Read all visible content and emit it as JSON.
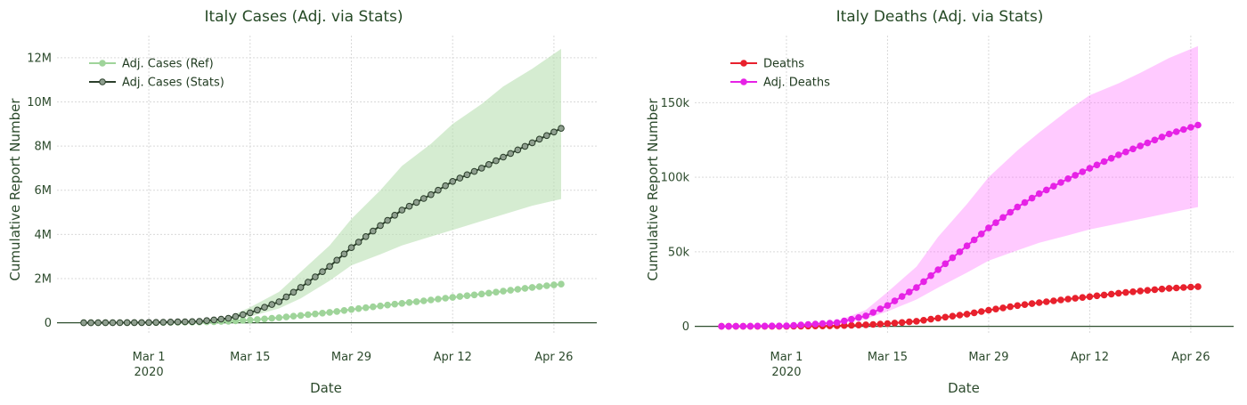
{
  "chart_data": [
    {
      "type": "line",
      "title": "Italy Cases (Adj. via Stats)",
      "xlabel": "Date",
      "ylabel": "Cumulative Report Number",
      "x_start": "2020-02-21",
      "x_end": "2020-04-27",
      "x_ticks": [
        {
          "date": "2020-03-01",
          "label": "Mar 1",
          "sub": "2020"
        },
        {
          "date": "2020-03-15",
          "label": "Mar 15",
          "sub": ""
        },
        {
          "date": "2020-03-29",
          "label": "Mar 29",
          "sub": ""
        },
        {
          "date": "2020-04-12",
          "label": "Apr 12",
          "sub": ""
        },
        {
          "date": "2020-04-26",
          "label": "Apr 26",
          "sub": ""
        }
      ],
      "y_ticks": [
        {
          "value": 0,
          "label": "0"
        },
        {
          "value": 2000000,
          "label": "2M"
        },
        {
          "value": 4000000,
          "label": "4M"
        },
        {
          "value": 6000000,
          "label": "6M"
        },
        {
          "value": 8000000,
          "label": "8M"
        },
        {
          "value": 10000000,
          "label": "10M"
        },
        {
          "value": 12000000,
          "label": "12M"
        }
      ],
      "ylim": [
        -500000,
        13000000
      ],
      "grid": true,
      "legend_position": "top-left",
      "band": {
        "color": "#b9dfb2",
        "opacity": 0.6,
        "dates": [
          "2020-02-21",
          "2020-03-01",
          "2020-03-08",
          "2020-03-12",
          "2020-03-15",
          "2020-03-19",
          "2020-03-22",
          "2020-03-26",
          "2020-03-29",
          "2020-04-02",
          "2020-04-05",
          "2020-04-09",
          "2020-04-12",
          "2020-04-16",
          "2020-04-19",
          "2020-04-23",
          "2020-04-27"
        ],
        "upper": [
          0,
          10000,
          60000,
          250000,
          700000,
          1400000,
          2300000,
          3500000,
          4700000,
          6000000,
          7100000,
          8100000,
          9000000,
          9900000,
          10700000,
          11500000,
          12400000
        ],
        "lower": [
          0,
          5000,
          30000,
          120000,
          280000,
          650000,
          1100000,
          1900000,
          2600000,
          3100000,
          3500000,
          3900000,
          4200000,
          4600000,
          4900000,
          5300000,
          5600000
        ]
      },
      "series": [
        {
          "name": "Adj. Cases (Ref)",
          "color": "#9fd49a",
          "marker_fill": "#9fd49a",
          "points": [
            [
              "2020-02-21",
              0
            ],
            [
              "2020-03-01",
              5000
            ],
            [
              "2020-03-08",
              30000
            ],
            [
              "2020-03-12",
              70000
            ],
            [
              "2020-03-15",
              120000
            ],
            [
              "2020-03-19",
              230000
            ],
            [
              "2020-03-22",
              330000
            ],
            [
              "2020-03-26",
              470000
            ],
            [
              "2020-03-29",
              600000
            ],
            [
              "2020-04-02",
              760000
            ],
            [
              "2020-04-05",
              880000
            ],
            [
              "2020-04-09",
              1030000
            ],
            [
              "2020-04-12",
              1150000
            ],
            [
              "2020-04-16",
              1300000
            ],
            [
              "2020-04-19",
              1430000
            ],
            [
              "2020-04-23",
              1600000
            ],
            [
              "2020-04-27",
              1750000
            ]
          ]
        },
        {
          "name": "Adj. Cases (Stats)",
          "color": "#2b3f2b",
          "marker_fill": "#8f9f8f",
          "points": [
            [
              "2020-02-21",
              0
            ],
            [
              "2020-03-01",
              10000
            ],
            [
              "2020-03-08",
              60000
            ],
            [
              "2020-03-12",
              200000
            ],
            [
              "2020-03-15",
              450000
            ],
            [
              "2020-03-19",
              950000
            ],
            [
              "2020-03-22",
              1600000
            ],
            [
              "2020-03-26",
              2550000
            ],
            [
              "2020-03-29",
              3400000
            ],
            [
              "2020-04-02",
              4400000
            ],
            [
              "2020-04-05",
              5100000
            ],
            [
              "2020-04-09",
              5800000
            ],
            [
              "2020-04-12",
              6400000
            ],
            [
              "2020-04-16",
              7000000
            ],
            [
              "2020-04-19",
              7500000
            ],
            [
              "2020-04-23",
              8150000
            ],
            [
              "2020-04-27",
              8800000
            ]
          ]
        }
      ]
    },
    {
      "type": "line",
      "title": "Italy Deaths (Adj. via Stats)",
      "xlabel": "Date",
      "ylabel": "Cumulative Report Number",
      "x_start": "2020-02-21",
      "x_end": "2020-04-27",
      "x_ticks": [
        {
          "date": "2020-03-01",
          "label": "Mar 1",
          "sub": "2020"
        },
        {
          "date": "2020-03-15",
          "label": "Mar 15",
          "sub": ""
        },
        {
          "date": "2020-03-29",
          "label": "Mar 29",
          "sub": ""
        },
        {
          "date": "2020-04-12",
          "label": "Apr 12",
          "sub": ""
        },
        {
          "date": "2020-04-26",
          "label": "Apr 26",
          "sub": ""
        }
      ],
      "y_ticks": [
        {
          "value": 0,
          "label": "0"
        },
        {
          "value": 50000,
          "label": "50k"
        },
        {
          "value": 100000,
          "label": "100k"
        },
        {
          "value": 150000,
          "label": "150k"
        }
      ],
      "ylim": [
        -5000,
        195000
      ],
      "grid": true,
      "legend_position": "top-left",
      "band": {
        "color": "#ff66ff",
        "opacity": 0.35,
        "dates": [
          "2020-02-21",
          "2020-03-01",
          "2020-03-08",
          "2020-03-12",
          "2020-03-15",
          "2020-03-19",
          "2020-03-22",
          "2020-03-26",
          "2020-03-29",
          "2020-04-02",
          "2020-04-05",
          "2020-04-09",
          "2020-04-12",
          "2020-04-16",
          "2020-04-19",
          "2020-04-23",
          "2020-04-27"
        ],
        "upper": [
          0,
          500,
          3500,
          11000,
          23000,
          40000,
          60000,
          82000,
          100000,
          118000,
          130000,
          145000,
          155000,
          163000,
          170000,
          180000,
          188000
        ],
        "lower": [
          0,
          200,
          1500,
          5000,
          10000,
          18000,
          26000,
          36000,
          44000,
          51000,
          56000,
          61000,
          65000,
          69000,
          72000,
          76000,
          80000
        ]
      },
      "series": [
        {
          "name": "Deaths",
          "color": "#e8212d",
          "marker_fill": "#e8212d",
          "points": [
            [
              "2020-02-21",
              0
            ],
            [
              "2020-03-01",
              30
            ],
            [
              "2020-03-08",
              370
            ],
            [
              "2020-03-12",
              1000
            ],
            [
              "2020-03-15",
              1800
            ],
            [
              "2020-03-19",
              3400
            ],
            [
              "2020-03-22",
              5500
            ],
            [
              "2020-03-26",
              8200
            ],
            [
              "2020-03-29",
              10800
            ],
            [
              "2020-04-02",
              13900
            ],
            [
              "2020-04-05",
              15900
            ],
            [
              "2020-04-09",
              18300
            ],
            [
              "2020-04-12",
              19900
            ],
            [
              "2020-04-16",
              22200
            ],
            [
              "2020-04-19",
              23700
            ],
            [
              "2020-04-23",
              25500
            ],
            [
              "2020-04-27",
              26600
            ]
          ]
        },
        {
          "name": "Adj. Deaths",
          "color": "#e622e6",
          "marker_fill": "#e622e6",
          "points": [
            [
              "2020-02-21",
              0
            ],
            [
              "2020-03-01",
              300
            ],
            [
              "2020-03-08",
              2500
            ],
            [
              "2020-03-12",
              7000
            ],
            [
              "2020-03-15",
              14000
            ],
            [
              "2020-03-19",
              26000
            ],
            [
              "2020-03-22",
              38000
            ],
            [
              "2020-03-26",
              54000
            ],
            [
              "2020-03-29",
              66000
            ],
            [
              "2020-04-02",
              80000
            ],
            [
              "2020-04-05",
              89000
            ],
            [
              "2020-04-09",
              99000
            ],
            [
              "2020-04-12",
              106000
            ],
            [
              "2020-04-16",
              115000
            ],
            [
              "2020-04-19",
              121000
            ],
            [
              "2020-04-23",
              129000
            ],
            [
              "2020-04-27",
              135000
            ]
          ]
        }
      ]
    }
  ]
}
